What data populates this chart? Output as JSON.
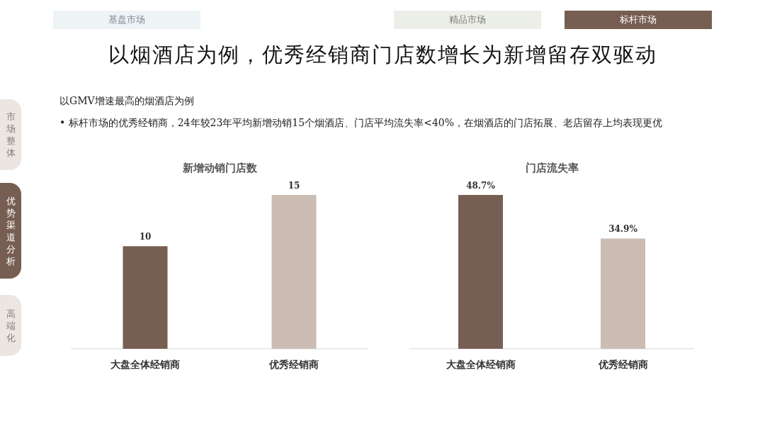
{
  "chart_data": [
    {
      "type": "other",
      "title": "以烟酒店为例，优秀经销商门店数增长为新增留存双驱动",
      "subtitle": "以GMV增速最高的烟酒店为例",
      "annotations": [
        "基盘市场",
        "精品市场",
        "标杆市场",
        "市场整体",
        "优势渠道分析",
        "高端化",
        "• 标杆市场的优秀经销商，24年较23年平均新增动销15个烟酒店、门店平均流失率<40%，在烟酒店的门店拓展、老店留存上均表现更优"
      ]
    },
    {
      "type": "bar",
      "title": "新增动销门店数",
      "categories": [
        "大盘全体经销商",
        "优秀经销商"
      ],
      "values": [
        10,
        15
      ],
      "colors": [
        "#775e52",
        "#cbbdb4"
      ],
      "data_labels": true
    },
    {
      "type": "bar",
      "title": "门店流失率",
      "categories": [
        "大盘全体经销商",
        "优秀经销商"
      ],
      "values": [
        48.7,
        34.9
      ],
      "colors": [
        "#775e52",
        "#cbbdb4"
      ],
      "value_labels": [
        "48.7%",
        "34.9%"
      ]
    }
  ]
}
